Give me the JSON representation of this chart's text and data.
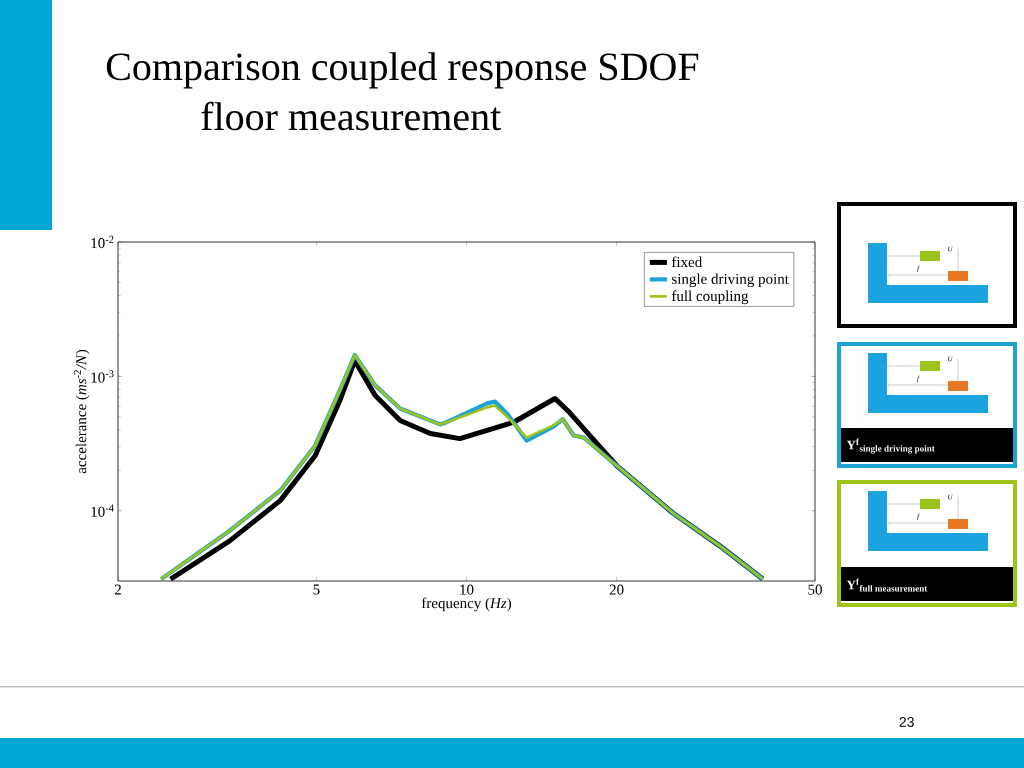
{
  "chart_data": {
    "type": "line",
    "title": "Comparison coupled response SDOF floor measurement",
    "xlabel": "frequency (*Hz*)",
    "ylabel": "accelerance (*ms*$^{-2}$*/N*)",
    "log": "xy",
    "xlim": [
      2,
      50
    ],
    "ylim": [
      3e-05,
      0.01
    ],
    "xticks": [
      2,
      5,
      10,
      20,
      50
    ],
    "yticks": [
      {
        "value": 0.0001,
        "label": "10$^{-4}$"
      },
      {
        "value": 0.001,
        "label": "10$^{-3}$"
      },
      {
        "value": 0.01,
        "label": "10$^{-2}$"
      }
    ],
    "legend": "top right",
    "grid": false,
    "series": [
      {
        "name": "fixed",
        "color": "#000000",
        "x": [
          2.55,
          3.35,
          4.23,
          4.97,
          5.57,
          5.97,
          6.56,
          7.36,
          8.46,
          9.7,
          12.4,
          15.05,
          16.1,
          17.9,
          20.0,
          25.9,
          32.2,
          39.3
        ],
        "values": [
          3.1e-05,
          5.97e-05,
          0.000119,
          0.000257,
          0.00066,
          0.00131,
          0.00072,
          0.00047,
          0.000376,
          0.000344,
          0.000454,
          0.000685,
          0.000538,
          0.000344,
          0.000217,
          9.66e-05,
          5.48e-05,
          3.1e-05
        ]
      },
      {
        "name": "single driving point",
        "color": "#1ba3d6",
        "x": [
          2.44,
          3.35,
          4.23,
          4.97,
          5.57,
          5.97,
          6.56,
          7.36,
          8.85,
          9.1,
          11.0,
          11.4,
          12.1,
          13.2,
          14.9,
          15.6,
          16.4,
          17.2,
          20.0,
          25.9,
          32.2,
          39.3
        ],
        "values": [
          3.1e-05,
          7.1e-05,
          0.000141,
          0.000305,
          0.000787,
          0.00144,
          0.000857,
          0.000577,
          0.000439,
          0.000454,
          0.00063,
          0.00065,
          0.00052,
          0.000333,
          0.00042,
          0.00048,
          0.000363,
          0.00035,
          0.000217,
          9.66e-05,
          5.48e-05,
          3.1e-05
        ]
      },
      {
        "name": "full coupling",
        "color": "#9dc41a",
        "x": [
          2.44,
          3.35,
          4.23,
          4.97,
          5.57,
          5.97,
          6.56,
          7.36,
          8.85,
          9.1,
          11.0,
          11.4,
          12.1,
          13.2,
          14.9,
          15.6,
          16.4,
          17.2,
          20.0,
          25.9,
          32.2,
          39.3
        ],
        "values": [
          3.1e-05,
          7.1e-05,
          0.000141,
          0.000305,
          0.000787,
          0.00144,
          0.000857,
          0.000577,
          0.000439,
          0.000454,
          0.000588,
          0.000606,
          0.000496,
          0.00035,
          0.00043,
          0.00048,
          0.000363,
          0.00035,
          0.000217,
          9.66e-05,
          5.48e-05,
          3.1e-05
        ]
      }
    ],
    "annotations": [
      "U",
      "f",
      "U",
      "f",
      "Y$^{f}$$_{single driving point}$",
      "U",
      "f",
      "Y$^{f}$$_{full measurement}$",
      "23"
    ]
  }
}
